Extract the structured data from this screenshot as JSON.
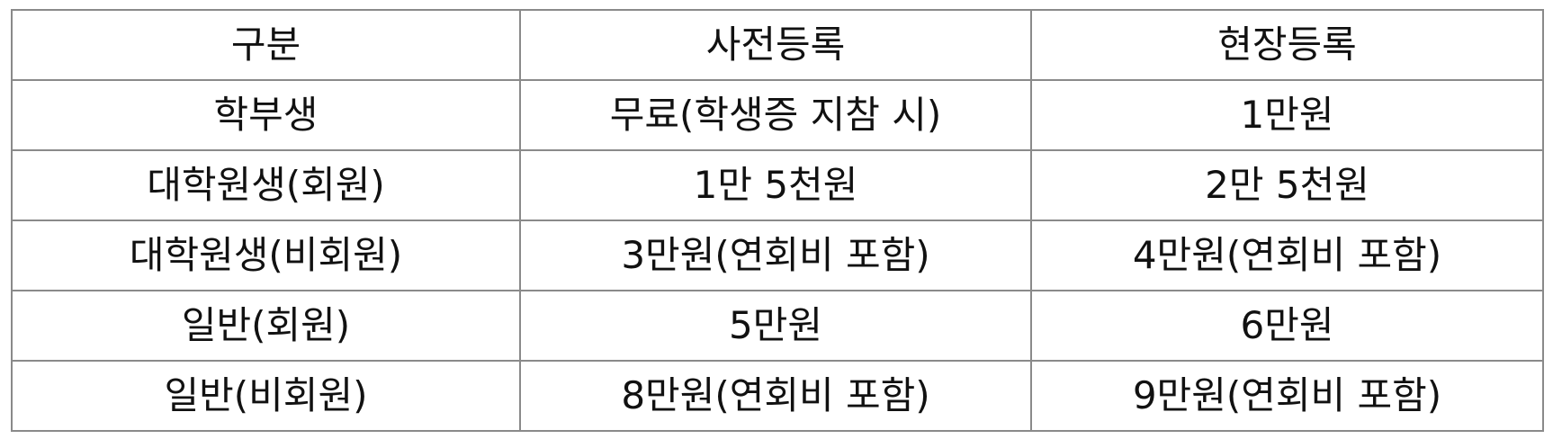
{
  "table": {
    "headers": [
      "구분",
      "사전등록",
      "현장등록"
    ],
    "rows": [
      [
        "학부생",
        "무료(학생증 지참 시)",
        "1만원"
      ],
      [
        "대학원생(회원)",
        "1만 5천원",
        "2만 5천원"
      ],
      [
        "대학원생(비회원)",
        "3만원(연회비 포함)",
        "4만원(연회비 포함)"
      ],
      [
        "일반(회원)",
        "5만원",
        "6만원"
      ],
      [
        "일반(비회원)",
        "8만원(연회비 포함)",
        "9만원(연회비 포함)"
      ]
    ]
  }
}
